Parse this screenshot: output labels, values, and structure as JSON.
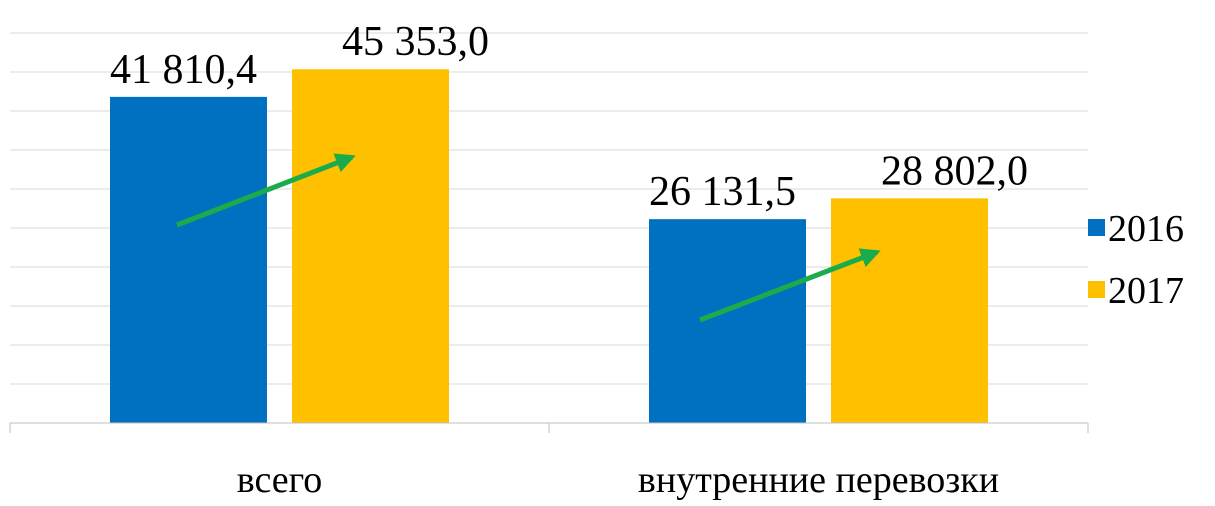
{
  "chart_data": {
    "type": "bar",
    "categories": [
      "всего",
      "внутренние перевозки"
    ],
    "series": [
      {
        "name": "2016",
        "color": "#0070c0",
        "values": [
          41810.4,
          26131.5
        ],
        "value_labels": [
          "41 810,4",
          "26 131,5"
        ]
      },
      {
        "name": "2017",
        "color": "#ffc000",
        "values": [
          45353.0,
          28802.0
        ],
        "value_labels": [
          "45 353,0",
          "28 802,0"
        ]
      }
    ],
    "ylim": [
      0,
      50000
    ],
    "yticks": [
      0,
      5000,
      10000,
      15000,
      20000,
      25000,
      30000,
      35000,
      40000,
      45000,
      50000
    ],
    "grid": true,
    "legend": "right"
  }
}
